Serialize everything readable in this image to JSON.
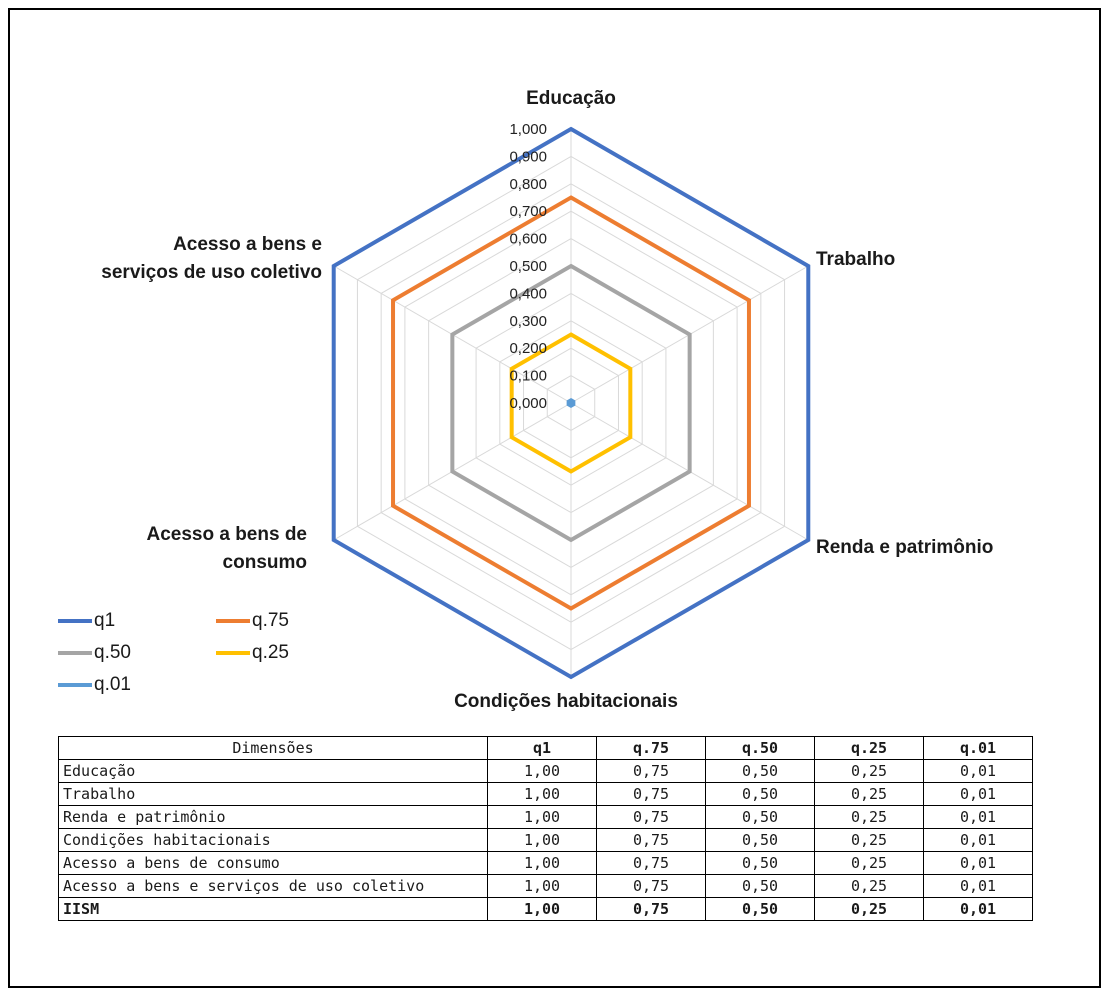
{
  "chart_data": {
    "type": "radar",
    "axes": [
      "Educação",
      "Trabalho",
      "Renda e patrimônio",
      "Condições habitacionais",
      "Acesso a bens de consumo",
      "Acesso a bens e serviços de uso coletivo"
    ],
    "axis_label_lines": [
      [
        "Educação"
      ],
      [
        "Trabalho"
      ],
      [
        "Renda e patrimônio"
      ],
      [
        "Condições habitacionais"
      ],
      [
        "Acesso a bens de",
        "consumo"
      ],
      [
        "Acesso a bens e",
        "serviços de uso coletivo"
      ]
    ],
    "rlim": [
      0,
      1
    ],
    "ticks": [
      "0,000",
      "0,100",
      "0,200",
      "0,300",
      "0,400",
      "0,500",
      "0,600",
      "0,700",
      "0,800",
      "0,900",
      "1,000"
    ],
    "grid": true,
    "legend_position": "bottom-left",
    "series": [
      {
        "name": "q1",
        "color": "#4472C4",
        "values": [
          1.0,
          1.0,
          1.0,
          1.0,
          1.0,
          1.0
        ]
      },
      {
        "name": "q.75",
        "color": "#ED7D31",
        "values": [
          0.75,
          0.75,
          0.75,
          0.75,
          0.75,
          0.75
        ]
      },
      {
        "name": "q.50",
        "color": "#A5A5A5",
        "values": [
          0.5,
          0.5,
          0.5,
          0.5,
          0.5,
          0.5
        ]
      },
      {
        "name": "q.25",
        "color": "#FFC000",
        "values": [
          0.25,
          0.25,
          0.25,
          0.25,
          0.25,
          0.25
        ]
      },
      {
        "name": "q.01",
        "color": "#5B9BD5",
        "values": [
          0.01,
          0.01,
          0.01,
          0.01,
          0.01,
          0.01
        ]
      }
    ]
  },
  "table": {
    "headers": [
      "Dimensões",
      "q1",
      "q.75",
      "q.50",
      "q.25",
      "q.01"
    ],
    "rows": [
      [
        "Educação",
        "1,00",
        "0,75",
        "0,50",
        "0,25",
        "0,01"
      ],
      [
        "Trabalho",
        "1,00",
        "0,75",
        "0,50",
        "0,25",
        "0,01"
      ],
      [
        "Renda e patrimônio",
        "1,00",
        "0,75",
        "0,50",
        "0,25",
        "0,01"
      ],
      [
        "Condições habitacionais",
        "1,00",
        "0,75",
        "0,50",
        "0,25",
        "0,01"
      ],
      [
        "Acesso a bens de consumo",
        "1,00",
        "0,75",
        "0,50",
        "0,25",
        "0,01"
      ],
      [
        "Acesso a bens e serviços de uso coletivo",
        "1,00",
        "0,75",
        "0,50",
        "0,25",
        "0,01"
      ],
      [
        "IISM",
        "1,00",
        "0,75",
        "0,50",
        "0,25",
        "0,01"
      ]
    ]
  }
}
